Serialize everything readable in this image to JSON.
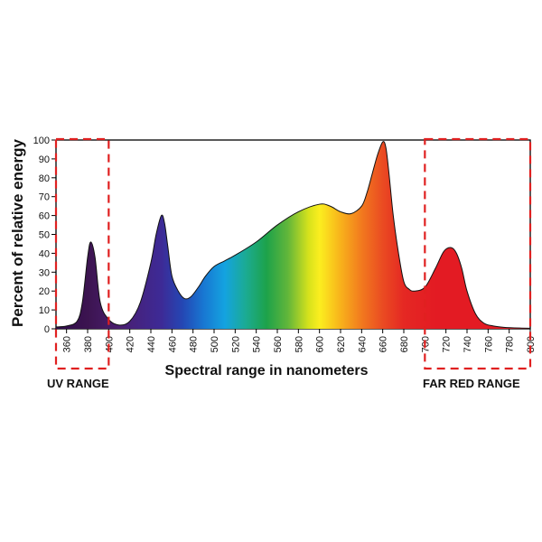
{
  "chart_data": {
    "type": "area",
    "title": "",
    "xlabel": "Spectral range in nanometers",
    "ylabel": "Percent of relative energy",
    "xlim": [
      350,
      800
    ],
    "ylim": [
      0,
      100
    ],
    "x_ticks": [
      360,
      380,
      400,
      420,
      440,
      460,
      480,
      500,
      520,
      540,
      560,
      580,
      600,
      620,
      640,
      660,
      680,
      700,
      720,
      740,
      760,
      780,
      800
    ],
    "y_ticks": [
      0,
      10,
      20,
      30,
      40,
      50,
      60,
      70,
      80,
      90,
      100
    ],
    "grid": false,
    "fill": "visible spectrum gradient",
    "series": [
      {
        "x": [
          350,
          360,
          370,
          375,
          380,
          383,
          387,
          392,
          400,
          410,
          420,
          430,
          440,
          445,
          450,
          453,
          456,
          460,
          466,
          472,
          478,
          485,
          492,
          500,
          510,
          520,
          540,
          560,
          580,
          600,
          610,
          620,
          630,
          640,
          645,
          650,
          655,
          660,
          663,
          666,
          670,
          675,
          680,
          685,
          690,
          700,
          710,
          718,
          725,
          730,
          735,
          740,
          748,
          756,
          765,
          775,
          790,
          800
        ],
        "y": [
          1,
          1.5,
          4,
          14,
          38,
          46,
          38,
          14,
          5,
          2,
          4,
          14,
          35,
          50,
          60,
          56,
          44,
          28,
          20,
          16,
          17,
          22,
          28,
          33,
          36,
          39,
          46,
          55,
          62,
          66,
          65,
          62,
          61,
          65,
          72,
          82,
          92,
          99,
          96,
          82,
          60,
          40,
          25,
          21,
          20,
          22,
          32,
          41,
          43,
          40,
          32,
          20,
          8,
          3,
          1.5,
          0.8,
          0.4,
          0.3
        ]
      }
    ]
  },
  "ranges": {
    "uv": {
      "label": "UV RANGE",
      "from": 350,
      "to": 400
    },
    "far_red": {
      "label": "FAR RED RANGE",
      "from": 700,
      "to": 800
    }
  },
  "colors": {
    "range_border": "#e02020",
    "axis": "#000000",
    "curve_outline": "#111111"
  }
}
